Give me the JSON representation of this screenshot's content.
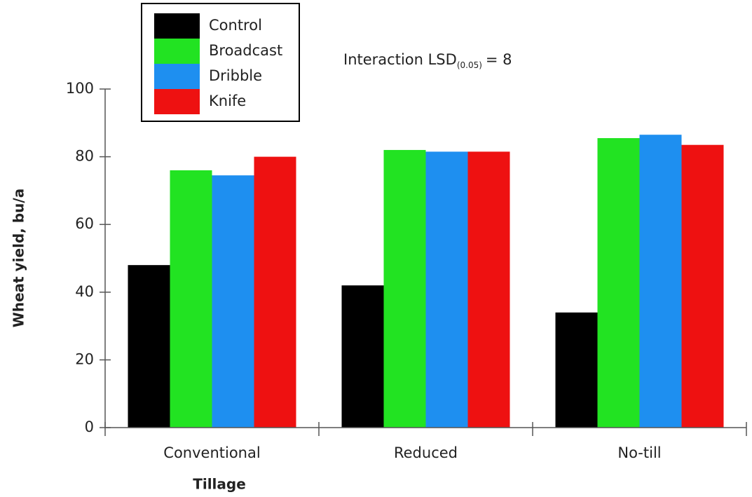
{
  "chart_data": {
    "type": "bar",
    "x_label": "Tillage",
    "y_label": "Wheat yield, bu/a",
    "annotation": {
      "text": "Interaction LSD",
      "subscript": "(0.05)",
      "suffix": "= 8"
    },
    "categories": [
      "Conventional",
      "Reduced",
      "No-till"
    ],
    "series": [
      {
        "name": "Control",
        "color": "#000000",
        "values": [
          48,
          42,
          34
        ]
      },
      {
        "name": "Broadcast",
        "color": "#22e322",
        "values": [
          76,
          82,
          85.5
        ]
      },
      {
        "name": "Dribble",
        "color": "#1e8ff0",
        "values": [
          74.5,
          81.5,
          86.5
        ]
      },
      {
        "name": "Knife",
        "color": "#ee1111",
        "values": [
          80,
          81.5,
          83.5
        ]
      }
    ],
    "ylim": [
      0,
      100
    ],
    "yticks": [
      0,
      20,
      40,
      60,
      80,
      100
    ],
    "legend": "upper left"
  }
}
